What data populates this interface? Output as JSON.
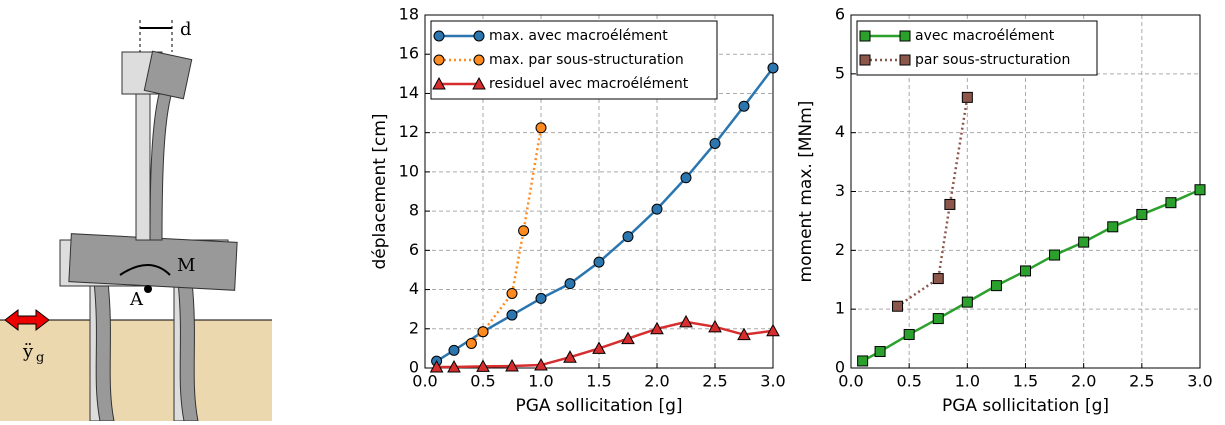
{
  "diagram": {
    "labels": {
      "d": "d",
      "M": "M",
      "A": "A",
      "ground": "ÿ",
      "ground_sub": "g"
    }
  },
  "chart_data": [
    {
      "type": "line",
      "xlabel": "PGA sollicitation [g]",
      "ylabel": "déplacement [cm]",
      "xlim": [
        0,
        3
      ],
      "ylim": [
        0,
        18
      ],
      "xticks": [
        {
          "value": 0,
          "label": "0.0"
        },
        0.5,
        {
          "value": 1,
          "label": "1.0"
        },
        1.5,
        {
          "value": 2,
          "label": "2.0"
        },
        2.5,
        {
          "value": 3,
          "label": "3.0"
        }
      ],
      "yticks": [
        0,
        2,
        4,
        6,
        8,
        10,
        12,
        14,
        16,
        18
      ],
      "grid": true,
      "legend": "upper left",
      "series": [
        {
          "name": "max. avec macroélément",
          "color": "#2c76b0",
          "marker": "circle",
          "linestyle": "solid",
          "x": [
            0.1,
            0.25,
            0.5,
            0.75,
            1.0,
            1.25,
            1.5,
            1.75,
            2.0,
            2.25,
            2.5,
            2.75,
            3.0
          ],
          "values": [
            0.35,
            0.9,
            1.85,
            2.7,
            3.55,
            4.3,
            5.4,
            6.7,
            8.1,
            9.7,
            11.45,
            13.35,
            15.3
          ]
        },
        {
          "name": "max. par sous-structuration",
          "color": "#ff8a1f",
          "marker": "circle",
          "linestyle": "dotted",
          "x": [
            0.4,
            0.5,
            0.75,
            0.85,
            1.0
          ],
          "values": [
            1.25,
            1.85,
            3.8,
            7.0,
            12.25
          ]
        },
        {
          "name": "residuel avec macroélément",
          "color": "#d62e2e",
          "marker": "triangle",
          "linestyle": "solid",
          "x": [
            0.1,
            0.25,
            0.5,
            0.75,
            1.0,
            1.25,
            1.5,
            1.75,
            2.0,
            2.25,
            2.5,
            2.75,
            3.0
          ],
          "values": [
            0.05,
            0.05,
            0.08,
            0.1,
            0.15,
            0.55,
            1.0,
            1.5,
            2.0,
            2.35,
            2.1,
            1.7,
            1.9
          ]
        }
      ]
    },
    {
      "type": "line",
      "xlabel": "PGA sollicitation [g]",
      "ylabel": "moment max. [MNm]",
      "xlim": [
        0,
        3
      ],
      "ylim": [
        0,
        6
      ],
      "xticks": [
        {
          "value": 0,
          "label": "0.0"
        },
        0.5,
        {
          "value": 1,
          "label": "1.0"
        },
        1.5,
        {
          "value": 2,
          "label": "2.0"
        },
        2.5,
        {
          "value": 3,
          "label": "3.0"
        }
      ],
      "yticks": [
        0,
        1,
        2,
        3,
        4,
        5,
        6
      ],
      "grid": true,
      "legend": "upper left",
      "series": [
        {
          "name": "avec macroélément",
          "color": "#2ca02c",
          "marker": "square",
          "linestyle": "solid",
          "x": [
            0.1,
            0.25,
            0.5,
            0.75,
            1.0,
            1.25,
            1.5,
            1.75,
            2.0,
            2.25,
            2.5,
            2.75,
            3.0
          ],
          "values": [
            0.12,
            0.28,
            0.57,
            0.84,
            1.12,
            1.4,
            1.65,
            1.92,
            2.14,
            2.4,
            2.61,
            2.81,
            3.03
          ]
        },
        {
          "name": "par sous-structuration",
          "color": "#8c564b",
          "marker": "square",
          "linestyle": "dotted",
          "x": [
            0.4,
            0.75,
            0.85,
            1.0
          ],
          "values": [
            1.05,
            1.52,
            2.78,
            4.6
          ]
        }
      ]
    }
  ]
}
